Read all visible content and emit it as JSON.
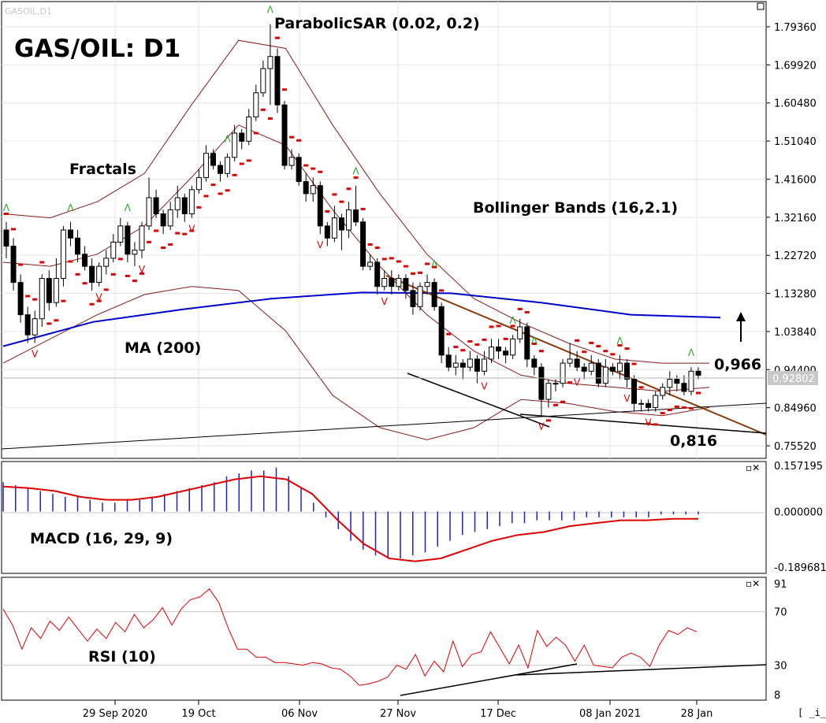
{
  "chart_data": {
    "type": "candlestick",
    "title": "GAS/OIL: D1",
    "header_faint": "GASOIL,D1",
    "price_axis": {
      "ticks": [
        "1.79360",
        "1.69920",
        "1.60480",
        "1.51040",
        "1.41600",
        "1.32160",
        "1.22720",
        "1.13280",
        "1.03840",
        "0.94400",
        "0.84960",
        "0.75520"
      ],
      "range": [
        0.72,
        1.83
      ],
      "current_price": "0.92802"
    },
    "date_ticks": [
      "29 Sep 2020",
      "19 Oct",
      "06 Nov",
      "27 Nov",
      "17 Dec",
      "08 Jan 2021",
      "28 Jan"
    ],
    "candles": [
      [
        1.29,
        1.25,
        1.31,
        1.22
      ],
      [
        1.25,
        1.16,
        1.27,
        1.14
      ],
      [
        1.16,
        1.08,
        1.18,
        1.06
      ],
      [
        1.08,
        1.03,
        1.1,
        1.01
      ],
      [
        1.03,
        1.07,
        1.09,
        1.01
      ],
      [
        1.07,
        1.17,
        1.18,
        1.05
      ],
      [
        1.17,
        1.11,
        1.19,
        1.09
      ],
      [
        1.11,
        1.17,
        1.22,
        1.1
      ],
      [
        1.17,
        1.29,
        1.3,
        1.15
      ],
      [
        1.29,
        1.27,
        1.31,
        1.25
      ],
      [
        1.27,
        1.23,
        1.29,
        1.21
      ],
      [
        1.23,
        1.2,
        1.25,
        1.19
      ],
      [
        1.2,
        1.16,
        1.22,
        1.14
      ],
      [
        1.16,
        1.2,
        1.21,
        1.15
      ],
      [
        1.2,
        1.22,
        1.24,
        1.18
      ],
      [
        1.22,
        1.26,
        1.28,
        1.21
      ],
      [
        1.26,
        1.3,
        1.32,
        1.25
      ],
      [
        1.3,
        1.23,
        1.31,
        1.21
      ],
      [
        1.23,
        1.24,
        1.26,
        1.2
      ],
      [
        1.24,
        1.3,
        1.31,
        1.22
      ],
      [
        1.3,
        1.37,
        1.42,
        1.29
      ],
      [
        1.37,
        1.33,
        1.39,
        1.32
      ],
      [
        1.33,
        1.3,
        1.34,
        1.28
      ],
      [
        1.3,
        1.34,
        1.36,
        1.29
      ],
      [
        1.34,
        1.37,
        1.4,
        1.32
      ],
      [
        1.37,
        1.33,
        1.38,
        1.31
      ],
      [
        1.33,
        1.39,
        1.4,
        1.32
      ],
      [
        1.39,
        1.42,
        1.44,
        1.38
      ],
      [
        1.42,
        1.48,
        1.5,
        1.41
      ],
      [
        1.48,
        1.45,
        1.49,
        1.44
      ],
      [
        1.45,
        1.43,
        1.46,
        1.41
      ],
      [
        1.43,
        1.47,
        1.48,
        1.42
      ],
      [
        1.47,
        1.53,
        1.55,
        1.46
      ],
      [
        1.53,
        1.51,
        1.54,
        1.49
      ],
      [
        1.51,
        1.57,
        1.59,
        1.5
      ],
      [
        1.57,
        1.63,
        1.65,
        1.56
      ],
      [
        1.63,
        1.69,
        1.71,
        1.62
      ],
      [
        1.69,
        1.72,
        1.8,
        1.6
      ],
      [
        1.72,
        1.6,
        1.74,
        1.58
      ],
      [
        1.6,
        1.45,
        1.61,
        1.44
      ],
      [
        1.45,
        1.47,
        1.49,
        1.44
      ],
      [
        1.47,
        1.41,
        1.48,
        1.4
      ],
      [
        1.41,
        1.38,
        1.43,
        1.36
      ],
      [
        1.38,
        1.4,
        1.42,
        1.36
      ],
      [
        1.4,
        1.3,
        1.41,
        1.28
      ],
      [
        1.3,
        1.27,
        1.31,
        1.25
      ],
      [
        1.27,
        1.32,
        1.35,
        1.26
      ],
      [
        1.32,
        1.29,
        1.33,
        1.24
      ],
      [
        1.29,
        1.34,
        1.36,
        1.27
      ],
      [
        1.34,
        1.31,
        1.4,
        1.3
      ],
      [
        1.31,
        1.2,
        1.32,
        1.19
      ],
      [
        1.2,
        1.21,
        1.23,
        1.19
      ],
      [
        1.21,
        1.15,
        1.22,
        1.13
      ],
      [
        1.15,
        1.17,
        1.19,
        1.14
      ],
      [
        1.17,
        1.15,
        1.19,
        1.13
      ],
      [
        1.15,
        1.17,
        1.18,
        1.14
      ],
      [
        1.17,
        1.14,
        1.18,
        1.12
      ],
      [
        1.14,
        1.1,
        1.16,
        1.08
      ],
      [
        1.1,
        1.15,
        1.16,
        1.09
      ],
      [
        1.15,
        1.16,
        1.18,
        1.13
      ],
      [
        1.16,
        1.1,
        1.17,
        1.09
      ],
      [
        1.1,
        0.98,
        1.11,
        0.96
      ],
      [
        0.98,
        0.95,
        1.0,
        0.94
      ],
      [
        0.95,
        0.96,
        0.98,
        0.93
      ],
      [
        0.96,
        0.95,
        0.97,
        0.92
      ],
      [
        0.95,
        0.97,
        0.99,
        0.94
      ],
      [
        0.97,
        0.94,
        0.98,
        0.91
      ],
      [
        0.94,
        0.97,
        0.99,
        0.93
      ],
      [
        0.97,
        1.0,
        1.02,
        0.96
      ],
      [
        1.0,
        0.99,
        1.02,
        0.97
      ],
      [
        0.99,
        0.98,
        1.0,
        0.96
      ],
      [
        0.98,
        1.02,
        1.03,
        0.97
      ],
      [
        1.02,
        1.05,
        1.07,
        1.01
      ],
      [
        1.05,
        0.97,
        1.06,
        0.95
      ],
      [
        0.97,
        0.95,
        0.98,
        0.93
      ],
      [
        0.95,
        0.87,
        0.96,
        0.83
      ],
      [
        0.87,
        0.91,
        0.92,
        0.85
      ],
      [
        0.91,
        0.91,
        0.92,
        0.89
      ],
      [
        0.91,
        0.96,
        0.97,
        0.9
      ],
      [
        0.96,
        0.97,
        1.01,
        0.95
      ],
      [
        0.97,
        0.95,
        0.99,
        0.94
      ],
      [
        0.95,
        0.94,
        0.96,
        0.92
      ],
      [
        0.94,
        0.96,
        0.98,
        0.93
      ],
      [
        0.96,
        0.91,
        0.97,
        0.9
      ],
      [
        0.91,
        0.95,
        0.97,
        0.9
      ],
      [
        0.95,
        0.94,
        0.96,
        0.93
      ],
      [
        0.94,
        0.96,
        0.98,
        0.92
      ],
      [
        0.96,
        0.92,
        0.97,
        0.9
      ],
      [
        0.92,
        0.86,
        0.93,
        0.84
      ],
      [
        0.86,
        0.86,
        0.87,
        0.84
      ],
      [
        0.86,
        0.85,
        0.87,
        0.84
      ],
      [
        0.85,
        0.88,
        0.89,
        0.84
      ],
      [
        0.88,
        0.9,
        0.91,
        0.87
      ],
      [
        0.9,
        0.92,
        0.94,
        0.88
      ],
      [
        0.92,
        0.91,
        0.93,
        0.89
      ],
      [
        0.91,
        0.89,
        0.93,
        0.88
      ],
      [
        0.89,
        0.94,
        0.95,
        0.88
      ],
      [
        0.94,
        0.93,
        0.95,
        0.92
      ]
    ],
    "moving_average": {
      "name": "MA (200)",
      "values": [
        1.002,
        1.062,
        1.093,
        1.12,
        1.135,
        1.133,
        1.11,
        1.08,
        1.073
      ]
    },
    "bollinger": {
      "name": "Bollinger Bands (16,2.1)",
      "upper": [
        1.33,
        1.32,
        1.36,
        1.43,
        1.6,
        1.76,
        1.74,
        1.55,
        1.38,
        1.23,
        1.12,
        1.06,
        1.01,
        0.97,
        0.96,
        0.96
      ],
      "middle": [
        1.21,
        1.2,
        1.23,
        1.3,
        1.42,
        1.55,
        1.5,
        1.34,
        1.2,
        1.08,
        0.99,
        0.93,
        0.91,
        0.9,
        0.89,
        0.9
      ],
      "lower": [
        0.96,
        1.02,
        1.08,
        1.13,
        1.15,
        1.14,
        1.04,
        0.88,
        0.8,
        0.77,
        0.8,
        0.87,
        0.86,
        0.84,
        0.83,
        0.85
      ]
    },
    "parabolic_sar": {
      "name": "ParabolicSAR (0.02, 0.2)"
    },
    "fractals": {
      "name": "Fractals"
    },
    "annotations": {
      "resistance": "0,966",
      "support": "0,816"
    },
    "macd": {
      "name": "MACD (16, 29, 9)",
      "ticks": [
        "0.157195",
        "0.000000",
        "-0.189681"
      ],
      "histogram": [
        0.1,
        0.09,
        0.08,
        0.07,
        0.06,
        0.05,
        0.05,
        0.04,
        0.03,
        0.03,
        0.04,
        0.04,
        0.05,
        0.06,
        0.07,
        0.08,
        0.09,
        0.1,
        0.12,
        0.13,
        0.14,
        0.14,
        0.15,
        0.12,
        0.08,
        0.03,
        -0.02,
        -0.06,
        -0.1,
        -0.13,
        -0.15,
        -0.16,
        -0.16,
        -0.15,
        -0.14,
        -0.12,
        -0.1,
        -0.08,
        -0.07,
        -0.06,
        -0.05,
        -0.04,
        -0.04,
        -0.03,
        -0.03,
        -0.03,
        -0.03,
        -0.02,
        -0.02,
        -0.02,
        -0.02,
        -0.02,
        -0.02,
        -0.01,
        -0.01,
        -0.01,
        -0.01
      ],
      "signal": [
        0.085,
        0.08,
        0.07,
        0.05,
        0.04,
        0.04,
        0.05,
        0.07,
        0.09,
        0.11,
        0.12,
        0.11,
        0.06,
        -0.03,
        -0.11,
        -0.16,
        -0.17,
        -0.16,
        -0.13,
        -0.1,
        -0.08,
        -0.07,
        -0.05,
        -0.04,
        -0.03,
        -0.03,
        -0.025,
        -0.025
      ]
    },
    "rsi": {
      "name": "RSI (10)",
      "ticks": [
        "91",
        "70",
        "30",
        "8"
      ],
      "values": [
        72,
        60,
        42,
        58,
        50,
        63,
        56,
        66,
        57,
        48,
        57,
        50,
        62,
        55,
        68,
        58,
        64,
        73,
        60,
        72,
        79,
        81,
        87,
        77,
        58,
        42,
        42,
        36,
        36,
        32,
        32,
        31,
        30,
        32,
        31,
        28,
        27,
        22,
        15,
        16,
        18,
        21,
        30,
        27,
        38,
        22,
        33,
        25,
        48,
        29,
        38,
        40,
        55,
        43,
        31,
        45,
        28,
        56,
        44,
        51,
        45,
        33,
        45,
        30,
        29,
        28,
        36,
        39,
        36,
        29,
        45,
        56,
        53,
        58,
        55
      ]
    },
    "version_footer": "[ _i_ ]"
  }
}
